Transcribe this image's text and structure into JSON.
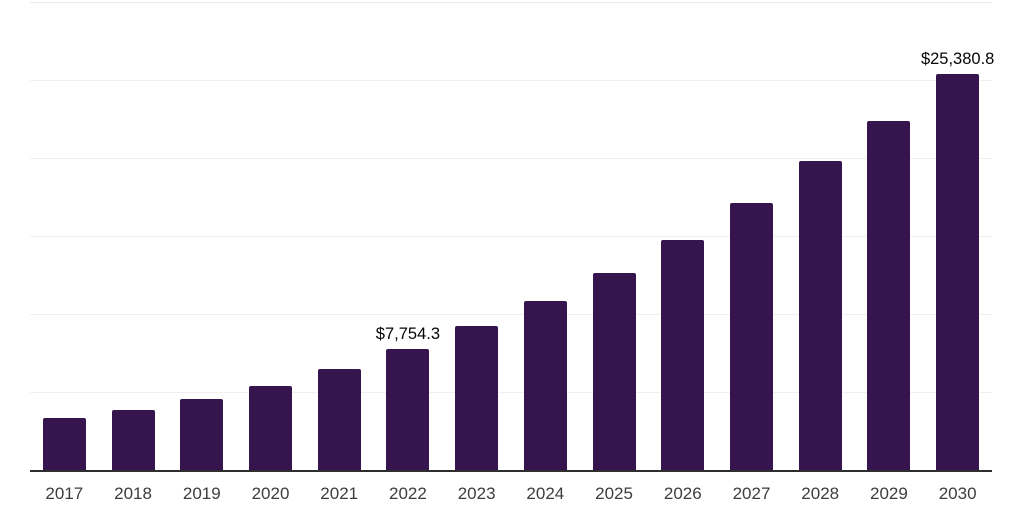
{
  "chart_data": {
    "type": "bar",
    "categories": [
      "2017",
      "2018",
      "2019",
      "2020",
      "2021",
      "2022",
      "2023",
      "2024",
      "2025",
      "2026",
      "2027",
      "2028",
      "2029",
      "2030"
    ],
    "values": [
      3350,
      3860,
      4550,
      5380,
      6450,
      7754.3,
      9250,
      10820,
      12630,
      14770,
      17110,
      19800,
      22340,
      25380.8
    ],
    "data_labels": [
      null,
      null,
      null,
      null,
      null,
      "$7,754.3",
      null,
      null,
      null,
      null,
      null,
      null,
      null,
      "$25,380.8"
    ],
    "ylim": [
      0,
      30000
    ],
    "grid_step": 5000,
    "grid": "horizontal",
    "legend": "none",
    "xlabel": "",
    "ylabel": "",
    "colors": {
      "bar": "#36154E",
      "axis_line": "#2e2e2e",
      "gridline": "#f0f0f0",
      "top_gridline": "#ebebeb",
      "tick_label": "#3d3d3d",
      "data_label": "#060606",
      "background": "#ffffff"
    }
  }
}
